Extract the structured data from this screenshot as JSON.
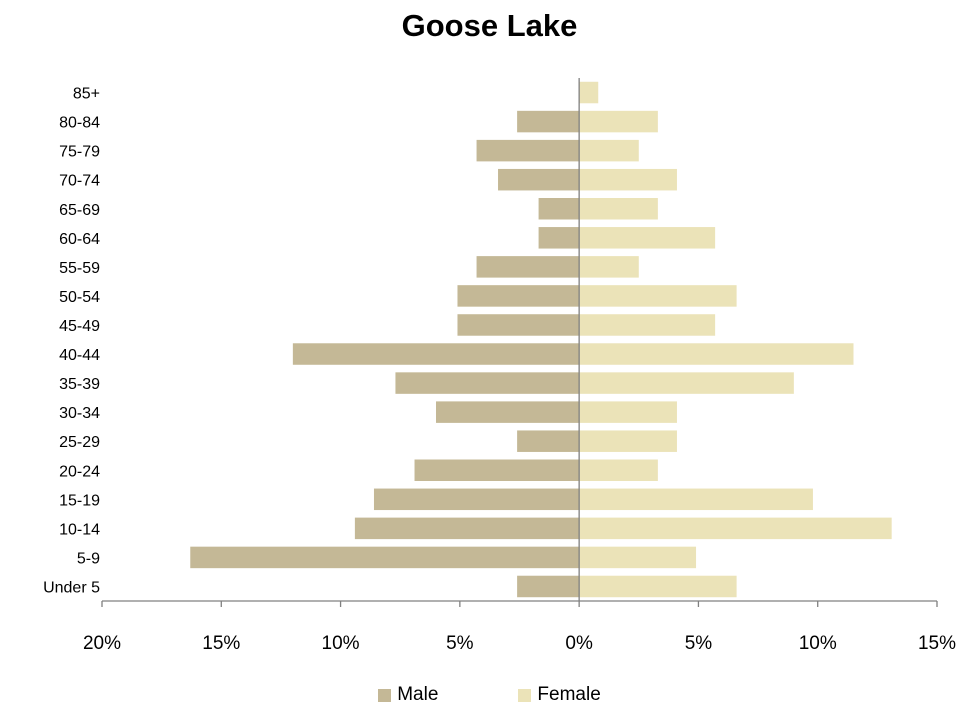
{
  "chart_data": {
    "type": "bar",
    "orientation": "horizontal",
    "title": "Goose Lake",
    "categories": [
      "Under 5",
      "5-9",
      "10-14",
      "15-19",
      "20-24",
      "25-29",
      "30-34",
      "35-39",
      "40-44",
      "45-49",
      "50-54",
      "55-59",
      "60-64",
      "65-69",
      "70-74",
      "75-79",
      "80-84",
      "85+"
    ],
    "series": [
      {
        "name": "Male",
        "color": "#c4b896",
        "values": [
          2.6,
          16.3,
          9.4,
          8.6,
          6.9,
          2.6,
          6.0,
          7.7,
          12.0,
          5.1,
          5.1,
          4.3,
          1.7,
          1.7,
          3.4,
          4.3,
          2.6,
          0.0
        ]
      },
      {
        "name": "Female",
        "color": "#ebe3b8",
        "values": [
          6.6,
          4.9,
          13.1,
          9.8,
          3.3,
          4.1,
          4.1,
          9.0,
          11.5,
          5.7,
          6.6,
          2.5,
          5.7,
          3.3,
          4.1,
          2.5,
          3.3,
          0.8
        ]
      }
    ],
    "xlim": [
      -20,
      15
    ],
    "xticks": [
      -20,
      -15,
      -10,
      -5,
      0,
      5,
      10,
      15
    ],
    "xtick_labels": [
      "20%",
      "15%",
      "10%",
      "5%",
      "0%",
      "5%",
      "10%",
      "15%"
    ],
    "legend_position": "bottom",
    "axis_color": "#808080"
  }
}
